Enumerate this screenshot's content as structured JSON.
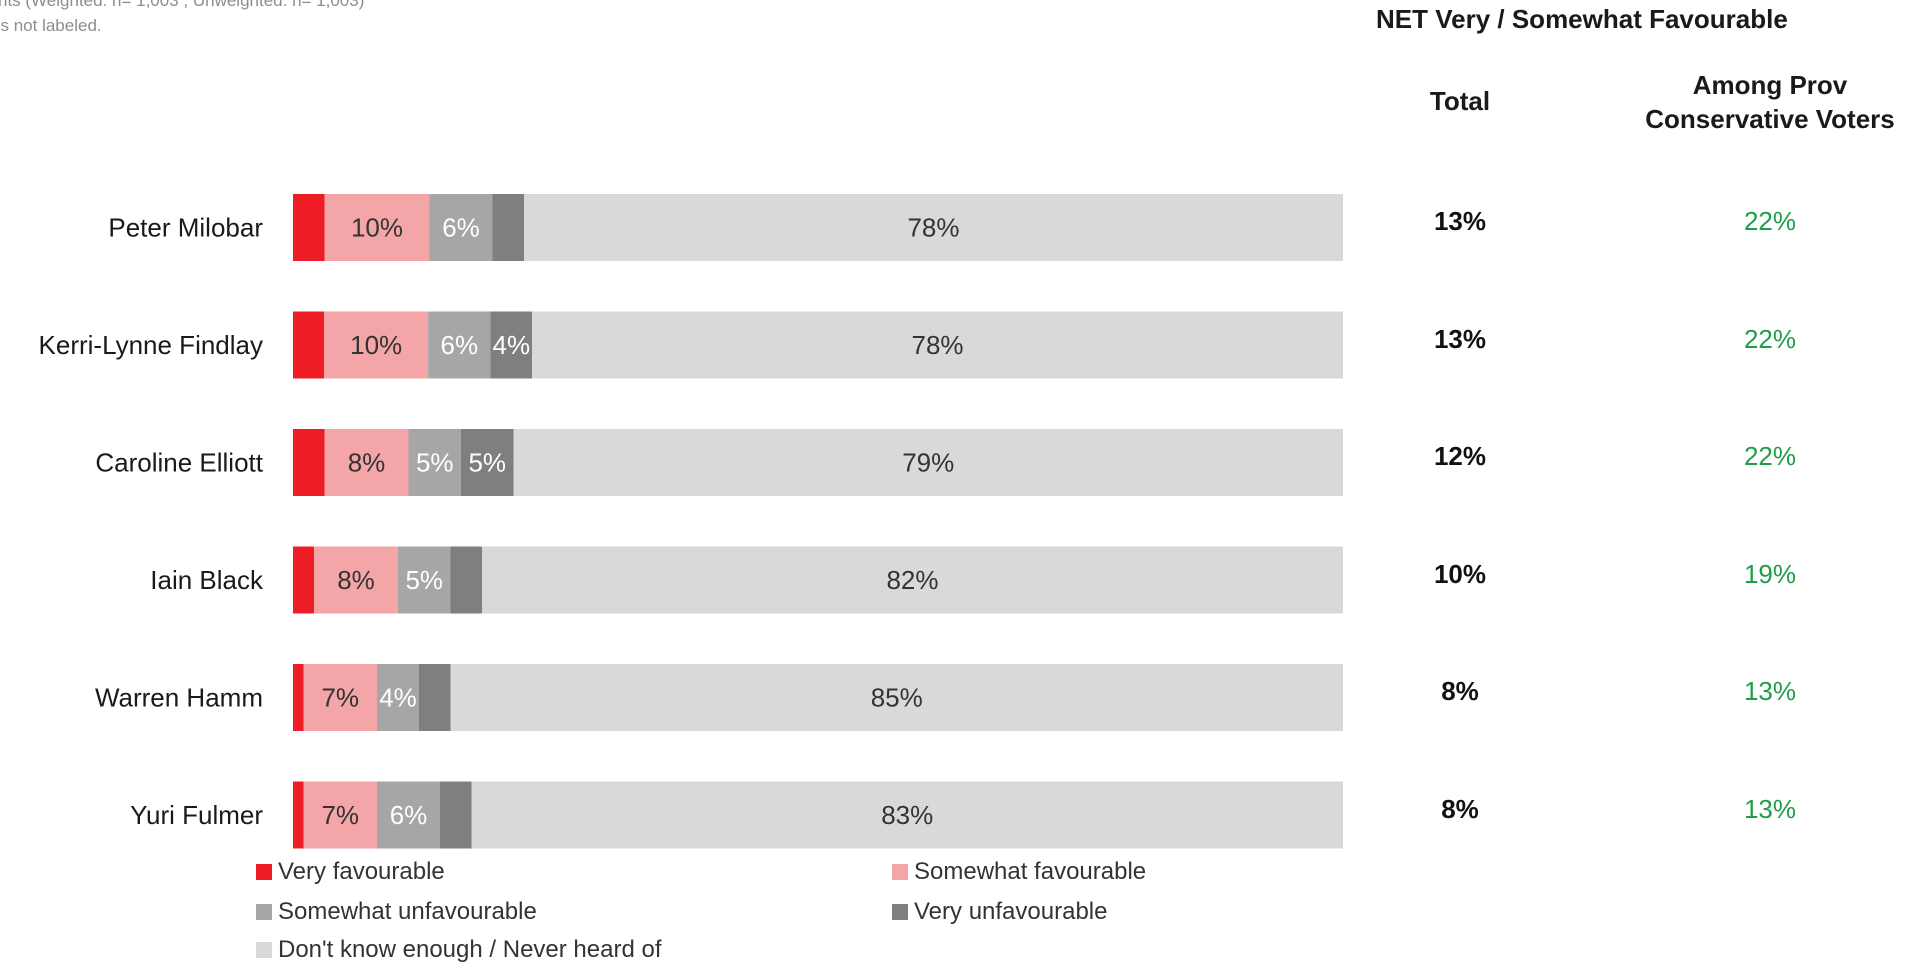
{
  "notes": {
    "line1": "nts (Weighted: n= 1,003 ; Unweighted: n= 1,003)",
    "line2": "ss not labeled."
  },
  "colors": {
    "very_fav": "#ee1c25",
    "somewhat_fav": "#f4a5a8",
    "somewhat_unfav": "#a6a6a6",
    "very_unfav": "#7f7f7f",
    "dont_know": "#d9d9d9",
    "net_among": "#1e9e48"
  },
  "chart_data": {
    "type": "bar",
    "orientation": "horizontal",
    "stacked": true,
    "categories": [
      "Peter Milobar",
      "Kerri-Lynne Findlay",
      "Caroline Elliott",
      "Iain Black",
      "Warren Hamm",
      "Yuri Fulmer"
    ],
    "series": [
      {
        "name": "Very favourable",
        "values": [
          3,
          3,
          3,
          2,
          1,
          1
        ]
      },
      {
        "name": "Somewhat favourable",
        "values": [
          10,
          10,
          8,
          8,
          7,
          7
        ]
      },
      {
        "name": "Somewhat unfavourable",
        "values": [
          6,
          6,
          5,
          5,
          4,
          6
        ]
      },
      {
        "name": "Very unfavourable",
        "values": [
          3,
          4,
          5,
          3,
          3,
          3
        ]
      },
      {
        "name": "Don't know enough / Never heard of",
        "values": [
          78,
          78,
          79,
          82,
          85,
          83
        ]
      }
    ],
    "data_labels": [
      [
        "",
        "10%",
        "6%",
        "",
        "78%"
      ],
      [
        "",
        "10%",
        "6%",
        "4%",
        "78%"
      ],
      [
        "",
        "8%",
        "5%",
        "5%",
        "79%"
      ],
      [
        "",
        "8%",
        "5%",
        "",
        "82%"
      ],
      [
        "",
        "7%",
        "4%",
        "",
        "85%"
      ],
      [
        "",
        "7%",
        "6%",
        "",
        "83%"
      ]
    ],
    "xlim": [
      0,
      100
    ],
    "legend_position": "bottom"
  },
  "legend": [
    {
      "label": "Very favourable",
      "color": "#ee1c25"
    },
    {
      "label": "Somewhat favourable",
      "color": "#f4a5a8"
    },
    {
      "label": "Somewhat unfavourable",
      "color": "#a6a6a6"
    },
    {
      "label": "Very unfavourable",
      "color": "#7f7f7f"
    },
    {
      "label": "Don't know enough / Never heard of",
      "color": "#d9d9d9"
    }
  ],
  "net_panel": {
    "title": "NET Very / Somewhat Favourable",
    "total_header": "Total",
    "among_header_line1": "Among Prov",
    "among_header_line2": "Conservative Voters",
    "total_values": [
      "13%",
      "13%",
      "12%",
      "10%",
      "8%",
      "8%"
    ],
    "among_values": [
      "22%",
      "22%",
      "22%",
      "19%",
      "13%",
      "13%"
    ]
  }
}
